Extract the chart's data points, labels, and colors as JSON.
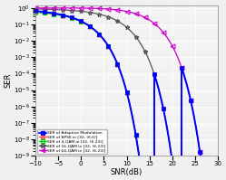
{
  "title": "",
  "xlabel": "SNR(dB)",
  "ylabel": "SER",
  "xlim": [
    -10,
    30
  ],
  "legend": [
    "SER of Adaptive Modulation",
    "SER of BPSK in [32, (6.6)]",
    "SER of 4-QAM in [32, (6.23)]",
    "SER of 16-QAM in [32, (6.23)]",
    "SER of 64-QAM in [32, (6.23)]"
  ],
  "colors": [
    "blue",
    "#ff4444",
    "#00cc00",
    "#555555",
    "#cc00cc"
  ],
  "markers": [
    "s",
    "^",
    "s",
    "*",
    "<"
  ],
  "thresholds": [
    10.0,
    16.0,
    22.0
  ],
  "bg_color": "#f0f0f0",
  "grid_color": "white"
}
